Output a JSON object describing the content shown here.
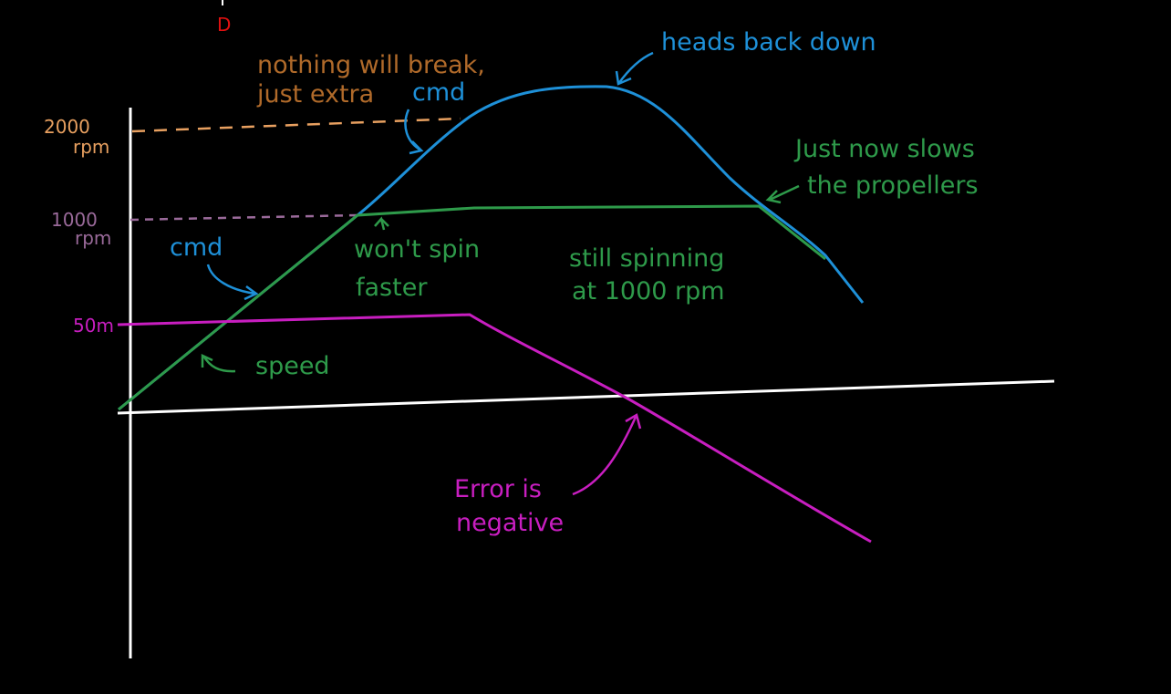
{
  "colors": {
    "background": "#000000",
    "axes": "#ffffff",
    "cmd": "#1e90d8",
    "speed": "#2e9a4a",
    "error": "#c81ec0",
    "saturation_note": "#b06a2a",
    "line_2000": "#e8a060",
    "line_1000": "#9a6a9a",
    "corner_mark": "#e01010"
  },
  "marks": {
    "corner": "D"
  },
  "axis_labels": {
    "rpm_2000_value": "2000",
    "rpm_2000_unit": "rpm",
    "rpm_1000_value": "1000",
    "rpm_1000_unit": "rpm",
    "error_50": "50m"
  },
  "annotations": {
    "nothing_break_line1": "nothing will break,",
    "nothing_break_line2": "just extra",
    "extra_cmd": "cmd",
    "heads_back_down": "heads back down",
    "just_now_line1": "Just now slows",
    "just_now_line2": "the propellers",
    "cmd_left": "cmd",
    "wont_spin_line1": "won't spin",
    "wont_spin_line2": "faster",
    "still_spinning_line1": "still spinning",
    "still_spinning_line2": "at 1000 rpm",
    "speed": "speed",
    "error_line1": "Error is",
    "error_line2": "negative"
  }
}
